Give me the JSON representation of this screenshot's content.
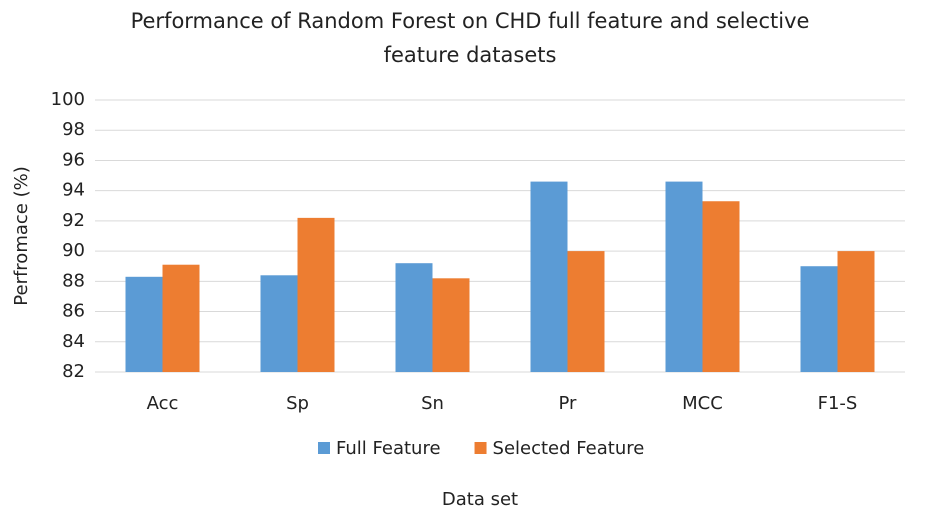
{
  "chart_data": {
    "type": "bar",
    "title": "Performance of Random Forest on CHD full feature and selective feature datasets",
    "x_label": "Data set",
    "y_label": "Perfromace (%)",
    "categories": [
      "Acc",
      "Sp",
      "Sn",
      "Pr",
      "MCC",
      "F1-S"
    ],
    "series": [
      {
        "name": "Full Feature",
        "color": "#5b9bd5",
        "values": [
          88.3,
          88.4,
          89.2,
          94.6,
          94.6,
          89.0
        ]
      },
      {
        "name": "Selected Feature",
        "color": "#ed7d31",
        "values": [
          89.1,
          92.2,
          88.2,
          90.0,
          93.3,
          90.0
        ]
      }
    ],
    "ylim": [
      82,
      100
    ],
    "yticks": [
      82,
      84,
      86,
      88,
      90,
      92,
      94,
      96,
      98,
      100
    ],
    "grid": true,
    "legend": "bottom"
  }
}
